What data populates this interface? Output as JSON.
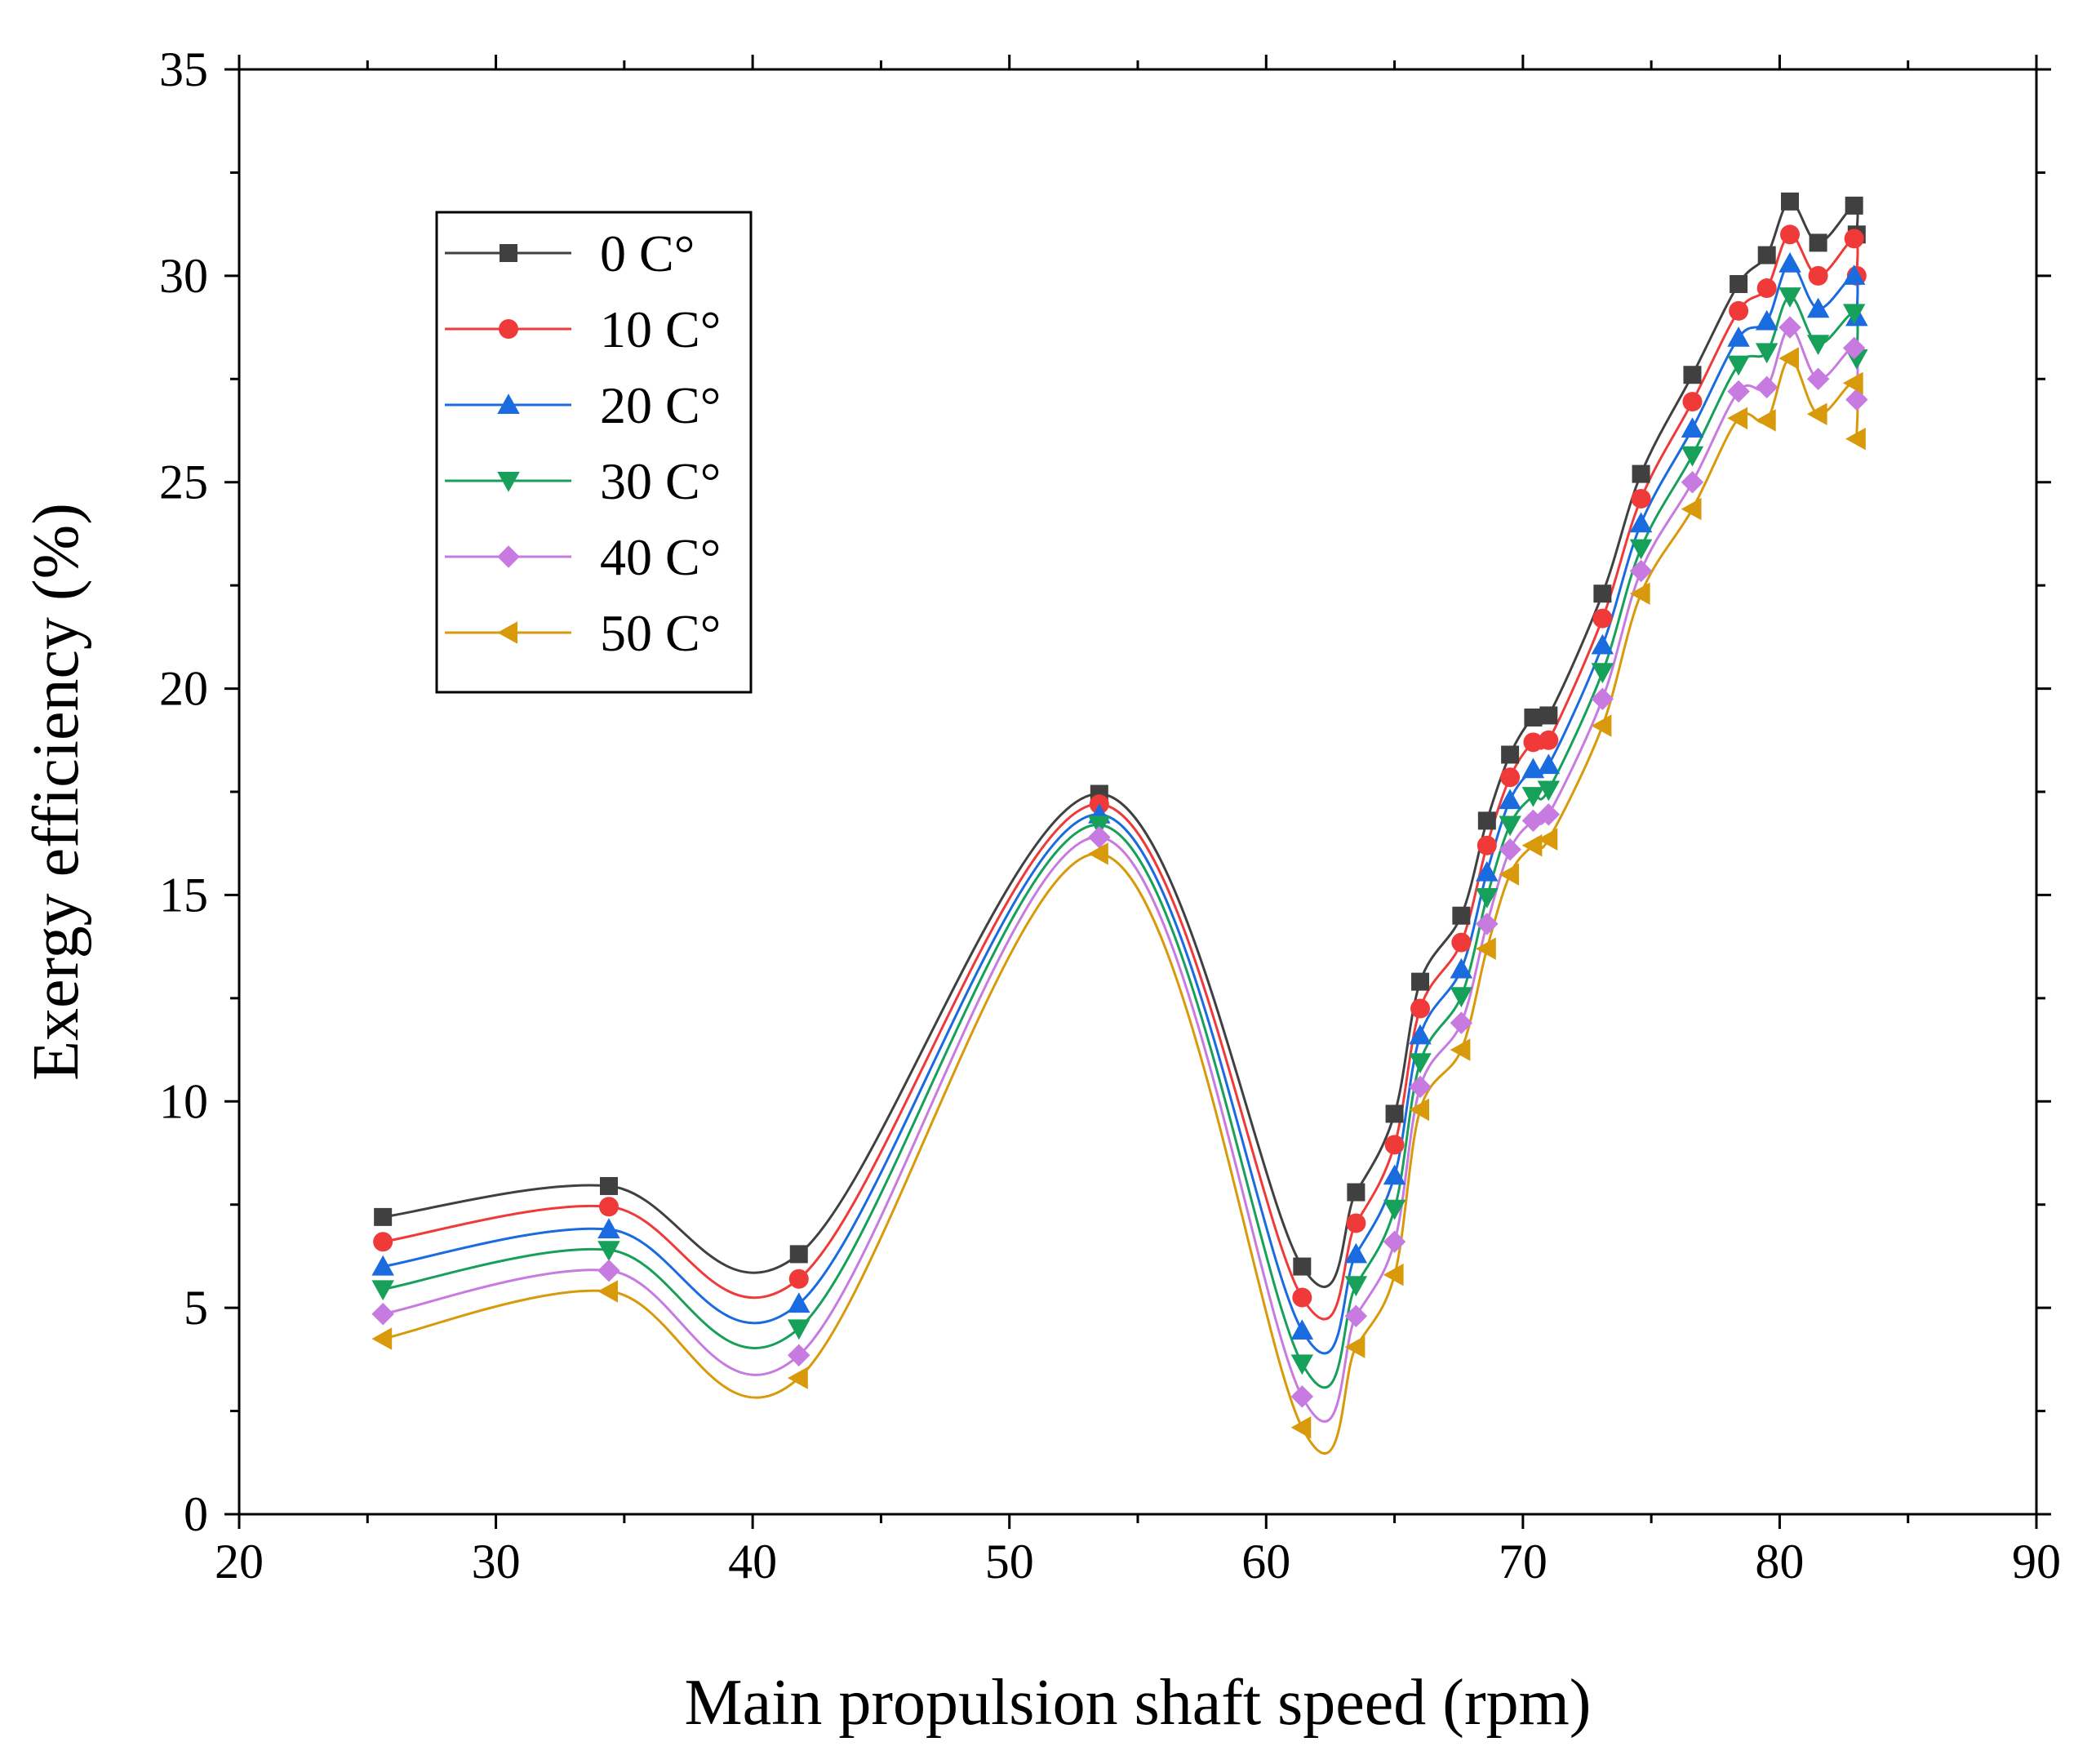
{
  "chart_data": {
    "type": "line",
    "title": "",
    "xlabel": "Main propulsion  shaft speed (rpm)",
    "ylabel": "Exergy efficiency (%)",
    "xlim": [
      20,
      90
    ],
    "ylim": [
      0,
      35
    ],
    "xticks": [
      20,
      30,
      40,
      50,
      60,
      70,
      80,
      90
    ],
    "yticks": [
      0,
      5,
      10,
      15,
      20,
      25,
      30,
      35
    ],
    "legend_position": "top-left",
    "x": [
      25.6,
      34.4,
      41.8,
      53.5,
      61.4,
      63.5,
      65.0,
      66.0,
      67.6,
      68.6,
      69.5,
      70.4,
      71.0,
      73.1,
      74.6,
      76.6,
      78.4,
      79.5,
      80.4,
      81.5,
      82.9,
      83.0
    ],
    "series": [
      {
        "name": "0 C°",
        "color": "#404040",
        "marker": "square",
        "values": [
          7.2,
          7.95,
          6.3,
          17.45,
          6.0,
          7.8,
          9.7,
          12.9,
          14.5,
          16.8,
          18.4,
          19.3,
          19.35,
          22.3,
          25.2,
          27.6,
          29.8,
          30.5,
          31.8,
          30.8,
          31.7,
          31.0
        ]
      },
      {
        "name": "10 C°",
        "color": "#f03a3a",
        "marker": "circle",
        "values": [
          6.6,
          7.45,
          5.7,
          17.2,
          5.25,
          7.05,
          8.95,
          12.25,
          13.85,
          16.2,
          17.85,
          18.7,
          18.75,
          21.7,
          24.6,
          26.95,
          29.15,
          29.7,
          31.0,
          30.0,
          30.9,
          30.0
        ]
      },
      {
        "name": "20 C°",
        "color": "#1a6be0",
        "marker": "triangle-up",
        "values": [
          6.0,
          6.9,
          5.1,
          16.95,
          4.45,
          6.3,
          8.2,
          11.6,
          13.2,
          15.55,
          17.3,
          18.05,
          18.15,
          21.05,
          24.0,
          26.3,
          28.5,
          28.9,
          30.3,
          29.2,
          30.0,
          29.0
        ]
      },
      {
        "name": "30 C°",
        "color": "#17a05a",
        "marker": "triangle-down",
        "values": [
          5.45,
          6.4,
          4.5,
          16.7,
          3.65,
          5.55,
          7.4,
          10.95,
          12.55,
          14.95,
          16.7,
          17.4,
          17.55,
          20.4,
          23.4,
          25.65,
          27.85,
          28.15,
          29.5,
          28.35,
          29.1,
          28.0
        ]
      },
      {
        "name": "40 C°",
        "color": "#c77be0",
        "marker": "diamond",
        "values": [
          4.85,
          5.9,
          3.85,
          16.4,
          2.85,
          4.8,
          6.6,
          10.35,
          11.9,
          14.3,
          16.1,
          16.8,
          16.95,
          19.75,
          22.85,
          25.0,
          27.2,
          27.3,
          28.75,
          27.5,
          28.25,
          27.0
        ]
      },
      {
        "name": "50 C°",
        "color": "#d89a0a",
        "marker": "triangle-left",
        "values": [
          4.25,
          5.4,
          3.3,
          16.0,
          2.1,
          4.05,
          5.8,
          9.8,
          11.25,
          13.7,
          15.5,
          16.2,
          16.35,
          19.1,
          22.3,
          24.35,
          26.55,
          26.5,
          28.0,
          26.65,
          27.4,
          26.05
        ]
      }
    ]
  }
}
